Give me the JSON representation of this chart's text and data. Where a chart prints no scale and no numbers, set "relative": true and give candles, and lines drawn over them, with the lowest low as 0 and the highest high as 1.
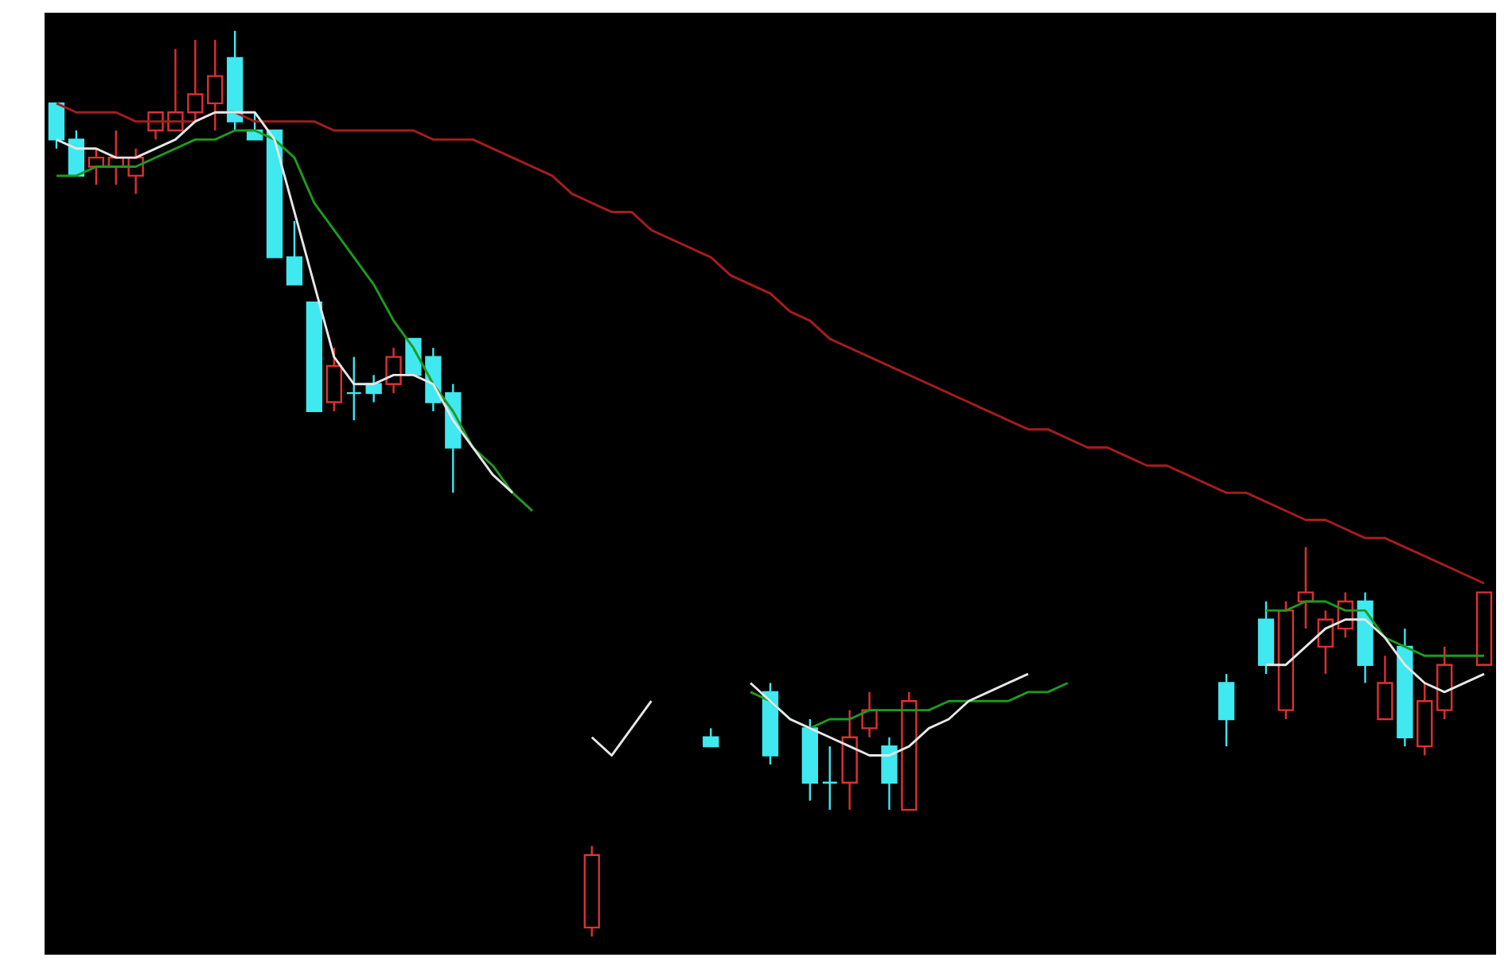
{
  "chart_data": {
    "type": "candlestick",
    "relative": true,
    "categories": [
      null,
      null,
      null,
      null,
      null,
      null,
      null,
      null,
      null,
      null,
      null,
      null,
      null,
      null,
      null,
      null,
      null,
      null,
      null,
      null,
      null,
      null,
      null,
      null,
      null,
      null,
      null,
      null,
      null,
      null,
      null,
      null,
      null,
      null,
      null,
      null,
      null,
      null,
      null,
      null,
      null,
      null,
      null,
      null,
      null,
      null,
      null,
      null,
      null,
      null,
      null,
      null,
      null,
      null,
      null,
      null,
      null,
      null,
      null,
      null,
      null,
      null,
      null,
      null,
      null,
      null,
      null,
      null,
      null,
      null,
      null,
      null,
      null
    ],
    "ohlc": [
      [
        0.92,
        0.92,
        0.87,
        0.88
      ],
      [
        0.88,
        0.89,
        0.84,
        0.84
      ],
      [
        0.85,
        0.87,
        0.83,
        0.86
      ],
      [
        0.85,
        0.89,
        0.83,
        0.86
      ],
      [
        0.84,
        0.87,
        0.82,
        0.86
      ],
      [
        0.89,
        0.91,
        0.88,
        0.91
      ],
      [
        0.89,
        0.98,
        0.89,
        0.91
      ],
      [
        0.91,
        0.99,
        0.9,
        0.93
      ],
      [
        0.92,
        0.99,
        0.89,
        0.95
      ],
      [
        0.97,
        1.0,
        0.89,
        0.9
      ],
      [
        0.89,
        0.91,
        0.88,
        0.88
      ],
      [
        0.89,
        0.89,
        0.75,
        0.75
      ],
      [
        0.75,
        0.79,
        0.72,
        0.72
      ],
      [
        0.7,
        0.7,
        0.58,
        0.58
      ],
      [
        0.59,
        0.65,
        0.58,
        0.63
      ],
      [
        0.6,
        0.64,
        0.57,
        0.6
      ],
      [
        0.61,
        0.62,
        0.59,
        0.6
      ],
      [
        0.61,
        0.65,
        0.6,
        0.64
      ],
      [
        0.66,
        0.66,
        0.62,
        0.62
      ],
      [
        0.64,
        0.65,
        0.58,
        0.59
      ],
      [
        0.6,
        0.61,
        0.49,
        0.54
      ],
      null,
      null,
      null,
      null,
      null,
      null,
      [
        0.01,
        0.1,
        0.0,
        0.09
      ],
      null,
      null,
      null,
      null,
      null,
      [
        0.22,
        0.23,
        0.21,
        0.21
      ],
      null,
      null,
      [
        0.27,
        0.28,
        0.19,
        0.2
      ],
      null,
      [
        0.23,
        0.24,
        0.15,
        0.17
      ],
      [
        0.17,
        0.21,
        0.14,
        0.17
      ],
      [
        0.17,
        0.25,
        0.14,
        0.22
      ],
      [
        0.23,
        0.27,
        0.22,
        0.25
      ],
      [
        0.21,
        0.22,
        0.14,
        0.17
      ],
      [
        0.14,
        0.27,
        0.14,
        0.26
      ],
      null,
      null,
      null,
      null,
      null,
      null,
      null,
      null,
      null,
      null,
      null,
      null,
      null,
      null,
      null,
      [
        0.28,
        0.29,
        0.21,
        0.24
      ],
      null,
      [
        0.35,
        0.37,
        0.29,
        0.3
      ],
      [
        0.25,
        0.37,
        0.24,
        0.36
      ],
      [
        0.37,
        0.43,
        0.34,
        0.38
      ],
      [
        0.32,
        0.36,
        0.29,
        0.35
      ],
      [
        0.34,
        0.38,
        0.33,
        0.37
      ],
      [
        0.37,
        0.38,
        0.28,
        0.3
      ],
      [
        0.24,
        0.31,
        0.24,
        0.28
      ],
      [
        0.32,
        0.34,
        0.21,
        0.22
      ],
      [
        0.21,
        0.28,
        0.2,
        0.26
      ],
      [
        0.25,
        0.32,
        0.24,
        0.3
      ],
      null,
      [
        0.3,
        0.38,
        0.3,
        0.38
      ]
    ],
    "colors": [
      "#40e8f0",
      "#40e8f0",
      "#e03030",
      "#e03030",
      "#e03030",
      "#e03030",
      "#e03030",
      "#e03030",
      "#e03030",
      "#40e8f0",
      "#40e8f0",
      "#40e8f0",
      "#40e8f0",
      "#40e8f0",
      "#e03030",
      "#40e8f0",
      "#40e8f0",
      "#e03030",
      "#40e8f0",
      "#40e8f0",
      "#40e8f0",
      null,
      null,
      null,
      null,
      null,
      null,
      "#e03030",
      null,
      null,
      null,
      null,
      null,
      "#40e8f0",
      null,
      null,
      "#40e8f0",
      null,
      "#40e8f0",
      "#40e8f0",
      "#e03030",
      "#e03030",
      "#40e8f0",
      "#e03030",
      null,
      null,
      null,
      null,
      null,
      null,
      null,
      null,
      null,
      null,
      null,
      null,
      null,
      null,
      null,
      "#40e8f0",
      null,
      "#40e8f0",
      "#e03030",
      "#e03030",
      "#e03030",
      "#e03030",
      "#40e8f0",
      "#e03030",
      "#40e8f0",
      "#e03030",
      "#e03030",
      null,
      "#e03030"
    ],
    "series": [
      {
        "type": "line",
        "color": "#a81c1c",
        "values": [
          0.92,
          0.91,
          0.91,
          0.91,
          0.9,
          0.9,
          0.9,
          0.9,
          0.91,
          0.91,
          0.9,
          0.9,
          0.9,
          0.9,
          0.89,
          0.89,
          0.89,
          0.89,
          0.89,
          0.88,
          0.88,
          0.88,
          0.87,
          0.86,
          0.85,
          0.84,
          0.82,
          0.81,
          0.8,
          0.8,
          0.78,
          0.77,
          0.76,
          0.75,
          0.73,
          0.72,
          0.71,
          0.69,
          0.68,
          0.66,
          0.65,
          0.64,
          0.63,
          0.62,
          0.61,
          0.6,
          0.59,
          0.58,
          0.57,
          0.56,
          0.56,
          0.55,
          0.54,
          0.54,
          0.53,
          0.52,
          0.52,
          0.51,
          0.5,
          0.49,
          0.49,
          0.48,
          0.47,
          0.46,
          0.46,
          0.45,
          0.44,
          0.44,
          0.43,
          0.42,
          0.41,
          0.4,
          0.39
        ]
      },
      {
        "type": "line",
        "color": "#1e9a1e",
        "values": [
          0.84,
          0.84,
          0.85,
          0.85,
          0.85,
          0.86,
          0.87,
          0.88,
          0.88,
          0.89,
          0.89,
          0.88,
          0.86,
          0.81,
          0.78,
          0.75,
          0.72,
          0.68,
          0.65,
          0.61,
          0.58,
          0.54,
          0.52,
          0.49,
          0.47,
          null,
          null,
          null,
          null,
          null,
          null,
          null,
          null,
          null,
          null,
          0.27,
          0.26,
          0.24,
          0.23,
          0.24,
          0.24,
          0.25,
          0.25,
          0.25,
          0.25,
          0.26,
          0.26,
          0.26,
          0.26,
          0.27,
          0.27,
          0.28,
          null,
          null,
          null,
          null,
          null,
          null,
          null,
          null,
          null,
          0.36,
          0.36,
          0.37,
          0.37,
          0.36,
          0.36,
          0.33,
          0.32,
          0.31,
          0.31,
          0.31,
          0.31
        ]
      },
      {
        "type": "line",
        "color": "#e6e6e6",
        "values": [
          0.88,
          0.87,
          0.87,
          0.86,
          0.86,
          0.87,
          0.88,
          0.9,
          0.91,
          0.91,
          0.91,
          0.88,
          0.8,
          0.72,
          0.64,
          0.61,
          0.61,
          0.62,
          0.62,
          0.61,
          0.57,
          0.54,
          0.51,
          0.49,
          null,
          null,
          null,
          0.22,
          0.2,
          0.23,
          0.26,
          null,
          null,
          null,
          null,
          0.28,
          0.26,
          0.24,
          0.23,
          0.22,
          0.21,
          0.2,
          0.2,
          0.21,
          0.23,
          0.24,
          0.26,
          0.27,
          0.28,
          0.29,
          null,
          null,
          null,
          null,
          null,
          null,
          null,
          null,
          null,
          null,
          null,
          0.3,
          0.3,
          0.32,
          0.34,
          0.35,
          0.35,
          0.33,
          0.3,
          0.28,
          0.27,
          0.28,
          0.29
        ]
      }
    ]
  }
}
